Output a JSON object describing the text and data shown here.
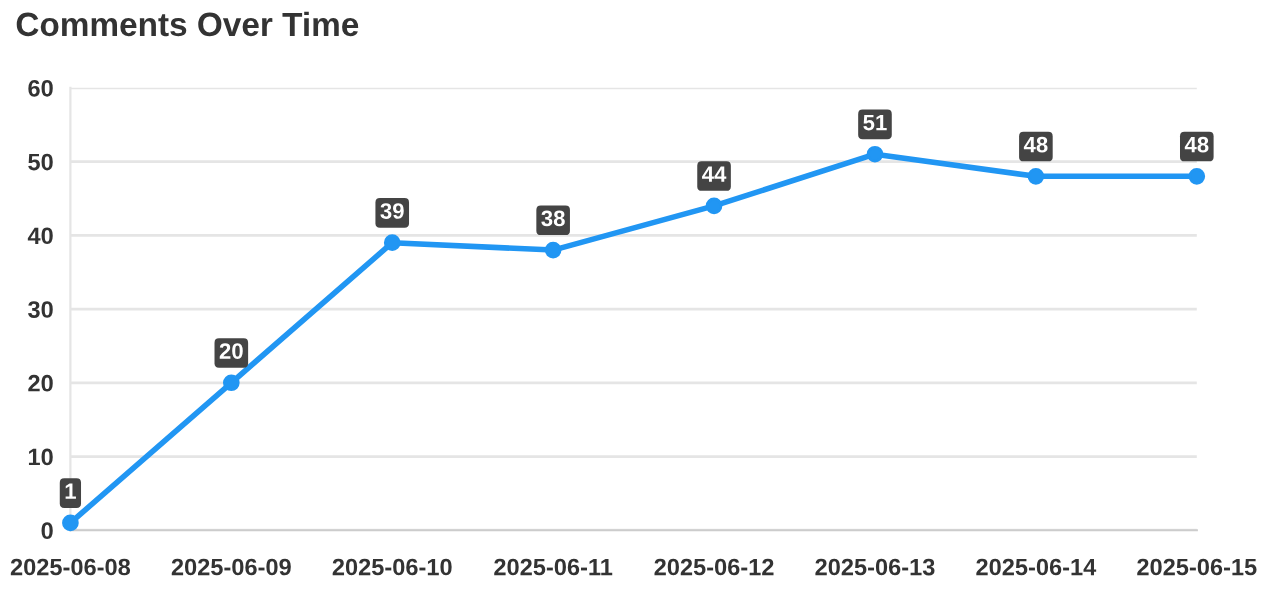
{
  "chart_data": {
    "type": "line",
    "title": "Comments Over Time",
    "categories": [
      "2025-06-08",
      "2025-06-09",
      "2025-06-10",
      "2025-06-11",
      "2025-06-12",
      "2025-06-13",
      "2025-06-14",
      "2025-06-15"
    ],
    "series": [
      {
        "color": "#2196f3",
        "values": [
          1,
          20,
          39,
          38,
          44,
          51,
          48,
          48
        ]
      }
    ],
    "ylim": [
      0,
      60
    ],
    "yticks": [
      0,
      10,
      20,
      30,
      40,
      50,
      60
    ],
    "grid": "y",
    "marker": "circle",
    "line_style": "solid",
    "data_labels": true,
    "legend": false
  }
}
